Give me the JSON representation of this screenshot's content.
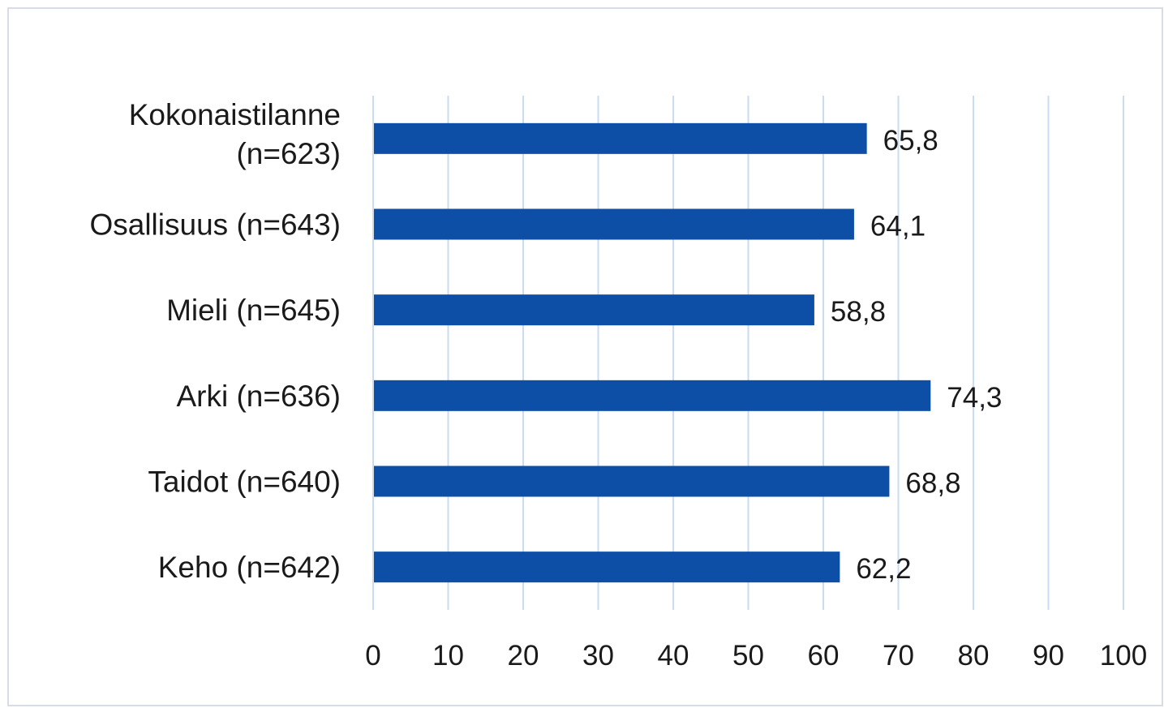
{
  "chart_data": {
    "type": "bar",
    "orientation": "horizontal",
    "categories": [
      [
        "Kokonaistilanne",
        "(n=623)"
      ],
      [
        "Osallisuus (n=643)"
      ],
      [
        "Mieli (n=645)"
      ],
      [
        "Arki (n=636)"
      ],
      [
        "Taidot (n=640)"
      ],
      [
        "Keho (n=642)"
      ]
    ],
    "values": [
      65.8,
      64.1,
      58.8,
      74.3,
      68.8,
      62.2
    ],
    "value_labels": [
      "65,8",
      "64,1",
      "58,8",
      "74,3",
      "68,8",
      "62,2"
    ],
    "xlim": [
      0,
      100
    ],
    "x_ticks": [
      0,
      10,
      20,
      30,
      40,
      50,
      60,
      70,
      80,
      90,
      100
    ],
    "x_tick_labels": [
      "0",
      "10",
      "20",
      "30",
      "40",
      "50",
      "60",
      "70",
      "80",
      "90",
      "100"
    ],
    "grid": true,
    "legend": "none",
    "bar_color": "#0d4ea6",
    "grid_color": "#c9dcf2"
  }
}
